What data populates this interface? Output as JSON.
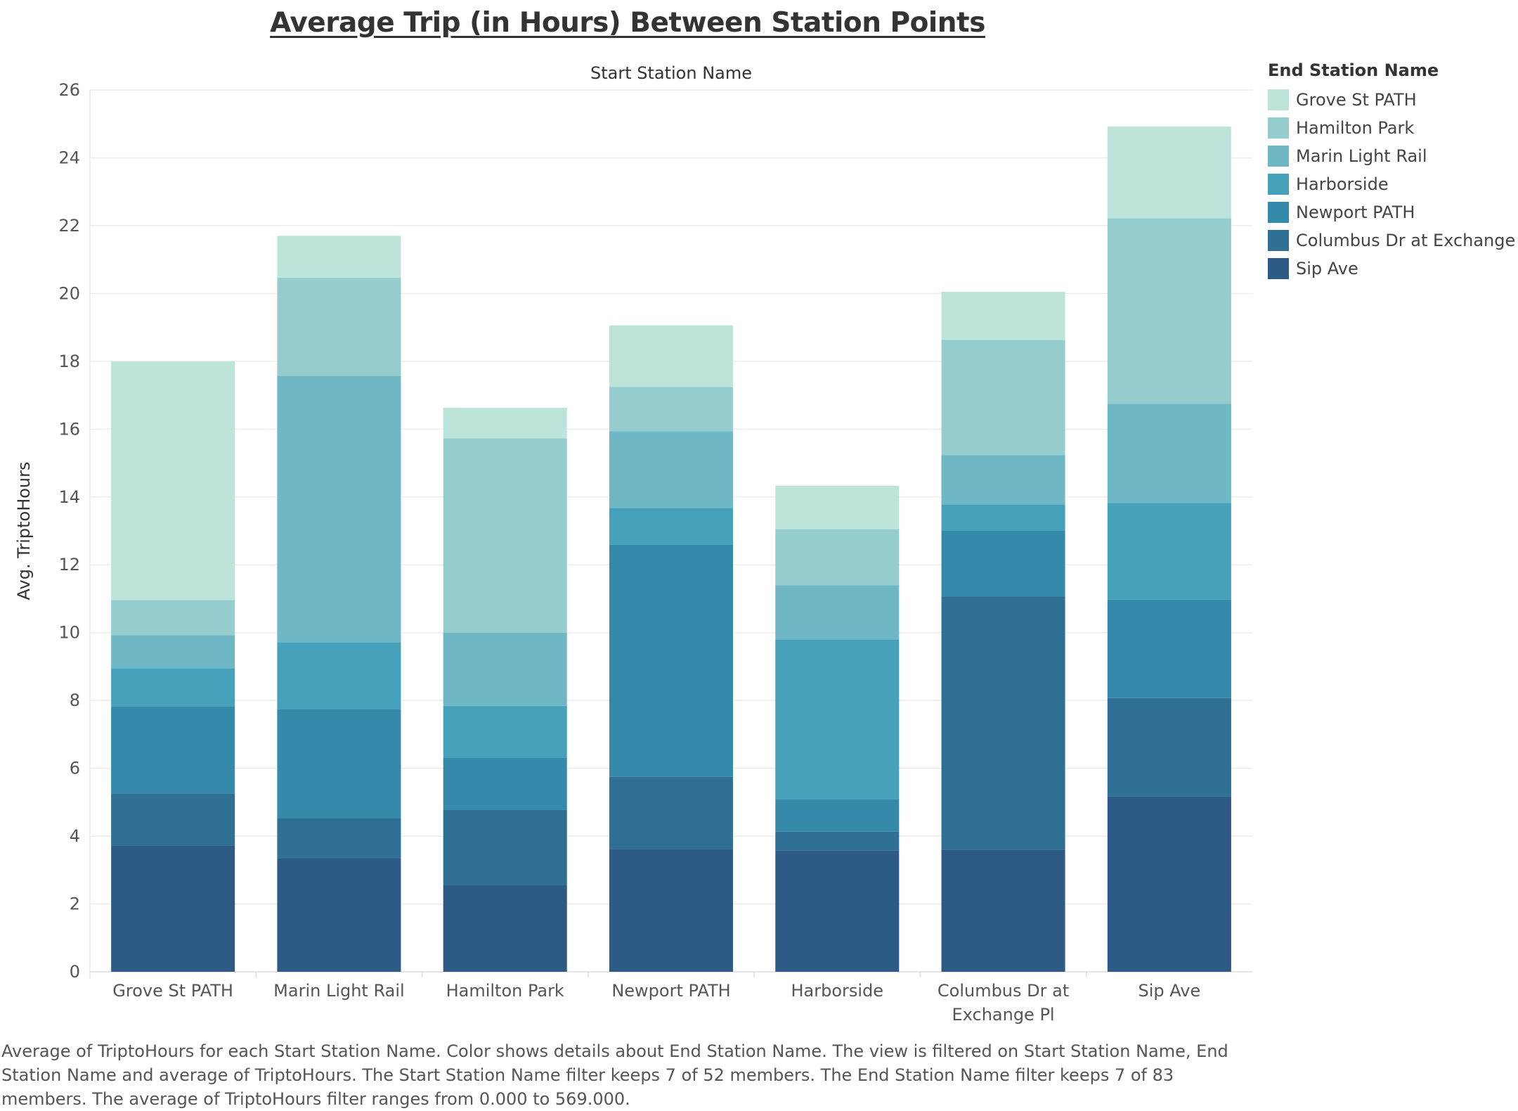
{
  "title": "Average Trip (in Hours) Between Station Points",
  "caption": "Average of TriptoHours for each Start Station Name.  Color shows details about End Station Name. The view is filtered on Start Station Name, End Station Name and average of TriptoHours. The Start Station Name filter keeps 7 of 52 members. The End Station Name filter keeps 7 of 83 members. The average of TriptoHours filter ranges from 0.000 to 569.000.",
  "legend": {
    "title": "End Station Name",
    "items": [
      {
        "label": "Grove St PATH",
        "color": "#bde4d9"
      },
      {
        "label": "Hamilton Park",
        "color": "#95cdcf"
      },
      {
        "label": "Marin Light Rail",
        "color": "#6fb7c4"
      },
      {
        "label": "Harborside",
        "color": "#46a1ba"
      },
      {
        "label": "Newport PATH",
        "color": "#358aab"
      },
      {
        "label": "Columbus Dr at Exchange Pl",
        "color": "#307095"
      },
      {
        "label": "Sip Ave",
        "color": "#2e5a86"
      }
    ]
  },
  "chart_data": {
    "type": "bar",
    "stacked": true,
    "title": "Average Trip (in Hours) Between Station Points",
    "xlabel": "Start Station Name",
    "ylabel": "Avg. TriptoHours",
    "ylim": [
      0,
      26
    ],
    "yticks": [
      0,
      2,
      4,
      6,
      8,
      10,
      12,
      14,
      16,
      18,
      20,
      22,
      24,
      26
    ],
    "grid": true,
    "legend_position": "right",
    "categories": [
      "Grove St PATH",
      "Marin Light Rail",
      "Hamilton Park",
      "Newport PATH",
      "Harborside",
      "Columbus Dr at Exchange Pl",
      "Sip Ave"
    ],
    "category_labels": [
      [
        "Grove St PATH"
      ],
      [
        "Marin Light Rail"
      ],
      [
        "Hamilton Park"
      ],
      [
        "Newport PATH"
      ],
      [
        "Harborside"
      ],
      [
        "Columbus Dr at",
        "Exchange Pl"
      ],
      [
        "Sip Ave"
      ]
    ],
    "series": [
      {
        "name": "Sip Ave",
        "color": "#2e5a86",
        "values": [
          3.72,
          3.35,
          2.55,
          3.62,
          3.58,
          3.6,
          5.17
        ]
      },
      {
        "name": "Columbus Dr at Exchange Pl",
        "color": "#307095",
        "values": [
          1.54,
          1.17,
          2.22,
          2.13,
          0.55,
          7.47,
          2.9
        ]
      },
      {
        "name": "Newport PATH",
        "color": "#358aab",
        "values": [
          2.57,
          3.23,
          1.55,
          6.85,
          0.95,
          1.93,
          2.9
        ]
      },
      {
        "name": "Harborside",
        "color": "#46a1ba",
        "values": [
          1.12,
          1.97,
          1.52,
          1.08,
          4.72,
          0.78,
          2.85
        ]
      },
      {
        "name": "Marin Light Rail",
        "color": "#6fb7c4",
        "values": [
          0.97,
          7.85,
          2.16,
          2.26,
          1.6,
          1.45,
          2.93
        ]
      },
      {
        "name": "Hamilton Park",
        "color": "#95cdcf",
        "values": [
          1.04,
          2.9,
          5.73,
          1.3,
          1.65,
          3.4,
          5.47
        ]
      },
      {
        "name": "Grove St PATH",
        "color": "#bde4d9",
        "values": [
          7.04,
          1.23,
          0.9,
          1.82,
          1.28,
          1.42,
          2.7
        ]
      }
    ]
  }
}
